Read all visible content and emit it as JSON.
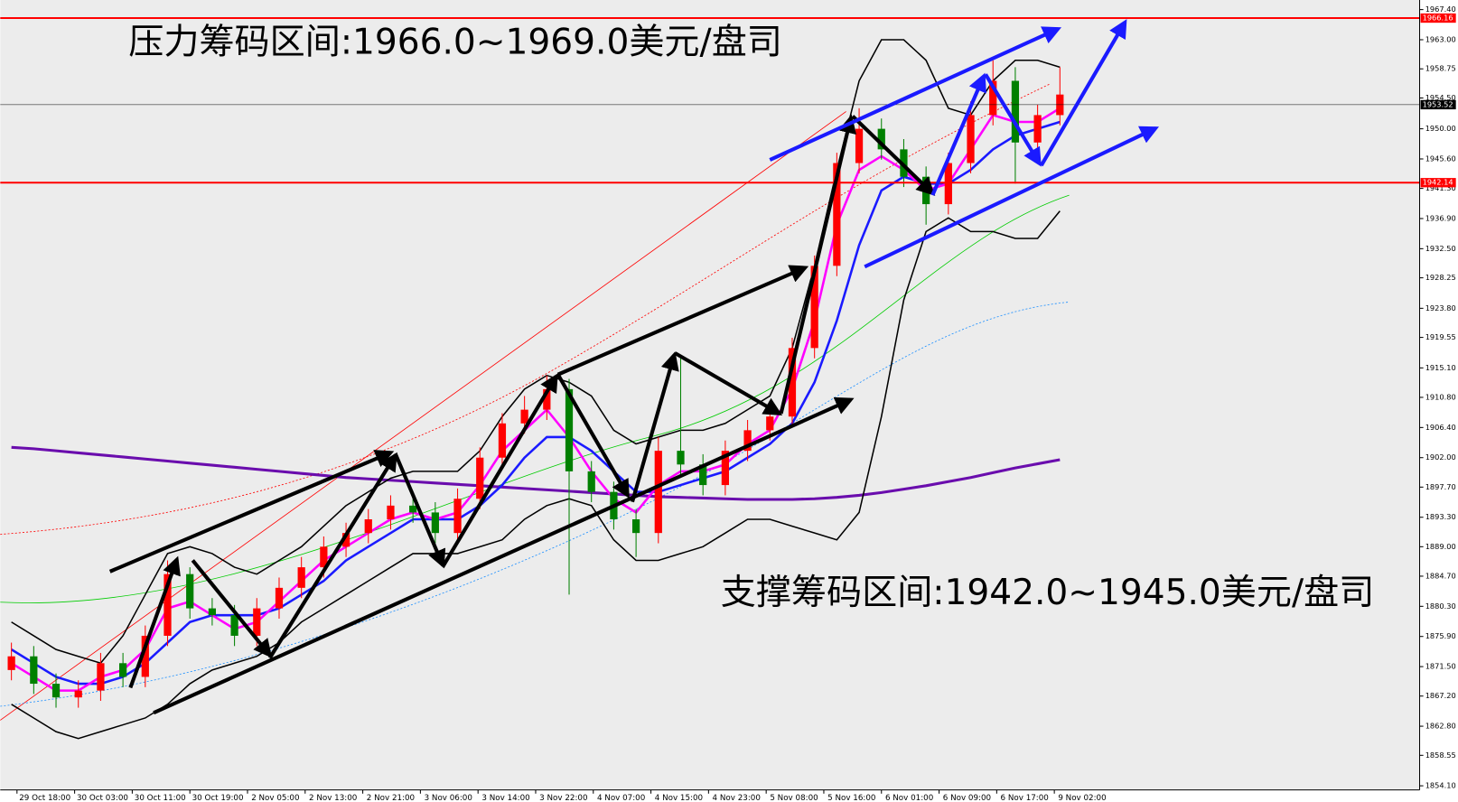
{
  "chart_data": {
    "type": "candlestick",
    "annotations": [
      "压力筹码区间:1966.0~1969.0美元/盘司",
      "支撑筹码区间:1942.0~1945.0美元/盘司"
    ],
    "xlabels": [
      "29 Oct 18:00",
      "30 Oct 03:00",
      "30 Oct 11:00",
      "30 Oct 19:00",
      "2 Nov 05:00",
      "2 Nov 13:00",
      "2 Nov 21:00",
      "3 Nov 06:00",
      "3 Nov 14:00",
      "3 Nov 22:00",
      "4 Nov 07:00",
      "4 Nov 15:00",
      "4 Nov 23:00",
      "5 Nov 08:00",
      "5 Nov 16:00",
      "6 Nov 01:00",
      "6 Nov 09:00",
      "6 Nov 17:00",
      "9 Nov 02:00"
    ],
    "ylim": [
      1853.5,
      1968.8
    ],
    "yticks": [
      {
        "value": 1967.4,
        "label": "1967.40"
      },
      {
        "value": 1963.0,
        "label": "1963.00"
      },
      {
        "value": 1958.75,
        "label": "1958.75"
      },
      {
        "value": 1954.5,
        "label": "1954.50"
      },
      {
        "value": 1950.0,
        "label": "1950.00"
      },
      {
        "value": 1945.6,
        "label": "1945.60"
      },
      {
        "value": 1941.3,
        "label": "1941.30"
      },
      {
        "value": 1936.9,
        "label": "1936.90"
      },
      {
        "value": 1932.5,
        "label": "1932.50"
      },
      {
        "value": 1928.25,
        "label": "1928.25"
      },
      {
        "value": 1923.8,
        "label": "1923.80"
      },
      {
        "value": 1919.55,
        "label": "1919.55"
      },
      {
        "value": 1915.1,
        "label": "1915.10"
      },
      {
        "value": 1910.8,
        "label": "1910.80"
      },
      {
        "value": 1906.4,
        "label": "1906.40"
      },
      {
        "value": 1902.0,
        "label": "1902.00"
      },
      {
        "value": 1897.7,
        "label": "1897.70"
      },
      {
        "value": 1893.3,
        "label": "1893.30"
      },
      {
        "value": 1889.0,
        "label": "1889.00"
      },
      {
        "value": 1884.7,
        "label": "1884.70"
      },
      {
        "value": 1880.3,
        "label": "1880.30"
      },
      {
        "value": 1875.9,
        "label": "1875.90"
      },
      {
        "value": 1871.5,
        "label": "1871.50"
      },
      {
        "value": 1867.2,
        "label": "1867.20"
      },
      {
        "value": 1862.8,
        "label": "1862.80"
      },
      {
        "value": 1858.55,
        "label": "1858.55"
      },
      {
        "value": 1854.1,
        "label": "1854.10"
      }
    ],
    "price_levels": [
      {
        "value": 1966.16,
        "color": "#ff0000"
      },
      {
        "value": 1953.52,
        "color": "#000000"
      },
      {
        "value": 1942.14,
        "color": "#ff0000"
      }
    ],
    "up_color": "#ff0000",
    "down_color": "#008000",
    "open": [
      1871,
      1873,
      1869,
      1867,
      1868,
      1872,
      1870,
      1876,
      1885,
      1880,
      1879,
      1876,
      1880,
      1883,
      1886,
      1889,
      1891,
      1893,
      1895,
      1894,
      1891,
      1896,
      1902,
      1907,
      1909,
      1912,
      1900,
      1897,
      1893,
      1891,
      1903,
      1901,
      1898,
      1903,
      1906,
      1908,
      1918,
      1930,
      1945,
      1950,
      1947,
      1943,
      1939,
      1945,
      1952,
      1957,
      1948,
      1952
    ],
    "high": [
      1875,
      1874.5,
      1870.5,
      1869.5,
      1873.5,
      1873.5,
      1877.5,
      1887,
      1886,
      1881.5,
      1880.5,
      1881.5,
      1884.5,
      1887.5,
      1890.5,
      1892.5,
      1894.5,
      1896.5,
      1897,
      1895.5,
      1897.5,
      1903.5,
      1908.5,
      1911,
      1914,
      1913.5,
      1901.5,
      1898.5,
      1894.5,
      1905,
      1917,
      1902.5,
      1904.5,
      1907.5,
      1909.5,
      1919.5,
      1931.5,
      1946.5,
      1953,
      1951.5,
      1948.5,
      1944.5,
      1946.5,
      1954,
      1960,
      1959,
      1953.5,
      1959
    ],
    "low": [
      1869.5,
      1867.5,
      1865.5,
      1865.5,
      1866.5,
      1868.5,
      1868.5,
      1874.5,
      1878.5,
      1877.5,
      1874.5,
      1874.5,
      1878.5,
      1881.5,
      1884.5,
      1887.5,
      1889.5,
      1891.5,
      1892.5,
      1889.5,
      1889.5,
      1894.5,
      1900.5,
      1905.5,
      1907.5,
      1882,
      1895.5,
      1891.5,
      1887.5,
      1889.5,
      1899.5,
      1896.5,
      1896.5,
      1901.5,
      1904.5,
      1906.5,
      1916.5,
      1928.5,
      1943.5,
      1945.5,
      1941.5,
      1936,
      1937.5,
      1943.5,
      1950.5,
      1942,
      1946.5,
      1950.5
    ],
    "close": [
      1873,
      1869,
      1867,
      1868,
      1872,
      1870,
      1876,
      1885,
      1880,
      1879,
      1876,
      1880,
      1883,
      1886,
      1889,
      1891,
      1893,
      1895,
      1894,
      1891,
      1896,
      1902,
      1907,
      1909,
      1912,
      1900,
      1897,
      1893,
      1891,
      1903,
      1901,
      1898,
      1903,
      1906,
      1908,
      1918,
      1930,
      1945,
      1950,
      1947,
      1943,
      1939,
      1945,
      1952,
      1957,
      1948,
      1952,
      1955
    ],
    "lines": [
      {
        "color": "#6a0dad",
        "width": 3,
        "values": [
          1903.5,
          1903.3,
          1903.0,
          1902.7,
          1902.4,
          1902.1,
          1901.8,
          1901.5,
          1901.2,
          1900.9,
          1900.6,
          1900.3,
          1900.0,
          1899.7,
          1899.4,
          1899.1,
          1898.9,
          1898.7,
          1898.5,
          1898.3,
          1898.1,
          1897.9,
          1897.7,
          1897.5,
          1897.3,
          1897.1,
          1896.9,
          1896.7,
          1896.5,
          1896.3,
          1896.2,
          1896.1,
          1896.0,
          1895.9,
          1895.9,
          1895.9,
          1896.0,
          1896.2,
          1896.5,
          1896.9,
          1897.4,
          1897.9,
          1898.5,
          1899.1,
          1899.8,
          1900.5,
          1901.1,
          1901.7
        ]
      },
      {
        "color": "#000000",
        "width": 1.5,
        "values": [
          1878,
          1876,
          1874,
          1873,
          1872,
          1876,
          1882,
          1888,
          1889,
          1888,
          1886,
          1885,
          1887,
          1889,
          1892,
          1895,
          1897,
          1899,
          1900,
          1900,
          1900,
          1903,
          1908,
          1912,
          1914,
          1913,
          1911,
          1906,
          1904,
          1905,
          1906,
          1906,
          1907,
          1909,
          1911,
          1918,
          1930,
          1944,
          1957,
          1963,
          1963,
          1960,
          1953,
          1952,
          1957,
          1960,
          1960,
          1959
        ]
      },
      {
        "color": "#000000",
        "width": 1.5,
        "values": [
          1866,
          1864,
          1862,
          1861,
          1862,
          1863,
          1864,
          1866,
          1869,
          1871,
          1872,
          1873,
          1875,
          1878,
          1880,
          1882,
          1884,
          1886,
          1888,
          1888,
          1888,
          1889,
          1890,
          1893,
          1895,
          1896,
          1895,
          1890,
          1887,
          1887,
          1888,
          1889,
          1891,
          1893,
          1893,
          1892,
          1891,
          1890,
          1894,
          1908,
          1925,
          1935,
          1937,
          1935,
          1935,
          1934,
          1934,
          1938
        ]
      },
      {
        "color": "#1a1aff",
        "width": 2.5,
        "values": [
          1874,
          1872,
          1870,
          1869,
          1869,
          1870,
          1872,
          1875,
          1878,
          1879,
          1879,
          1879,
          1880,
          1882,
          1884,
          1887,
          1889,
          1891,
          1893,
          1893,
          1893,
          1895,
          1898,
          1902,
          1905,
          1905,
          1903,
          1900,
          1897,
          1897,
          1898,
          1899,
          1900,
          1902,
          1904,
          1907,
          1913,
          1922,
          1933,
          1941,
          1943,
          1942,
          1942,
          1944,
          1947,
          1949,
          1950,
          1951
        ]
      },
      {
        "color": "#ff00ff",
        "width": 2.5,
        "values": [
          1872,
          1870,
          1868,
          1868,
          1870,
          1871,
          1874,
          1880,
          1881,
          1879,
          1877,
          1878,
          1881,
          1884,
          1887,
          1889,
          1891,
          1893,
          1894,
          1893,
          1894,
          1898,
          1903,
          1906,
          1909,
          1905,
          1900,
          1896,
          1894,
          1898,
          1900,
          1900,
          1901,
          1904,
          1906,
          1912,
          1922,
          1936,
          1944,
          1946,
          1944,
          1941,
          1942,
          1947,
          1952,
          1951,
          1951,
          1953
        ]
      }
    ]
  }
}
